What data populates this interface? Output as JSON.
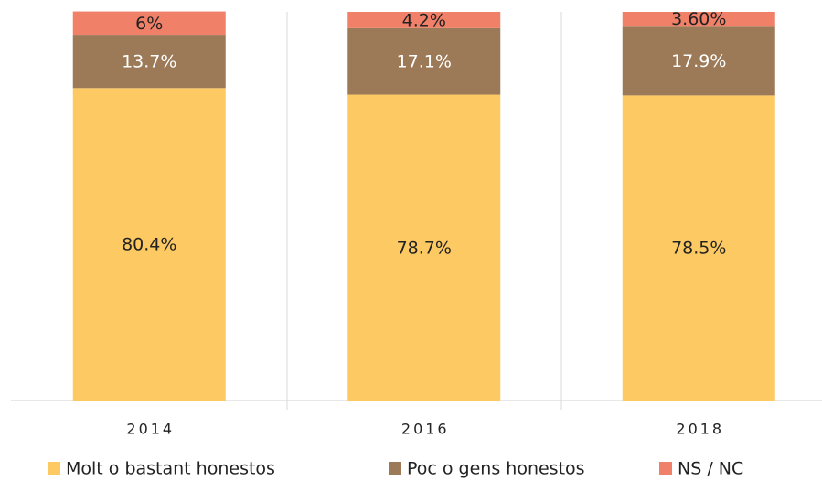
{
  "chart_data": {
    "type": "bar",
    "stacked": true,
    "categories": [
      "2014",
      "2016",
      "2018"
    ],
    "ylim": [
      0,
      100
    ],
    "series": [
      {
        "name": "Molt o bastant honestos",
        "color": "#fdc962",
        "values": [
          80.4,
          78.7,
          78.5
        ],
        "value_labels": [
          "80.4%",
          "78.7%",
          "78.5%"
        ]
      },
      {
        "name": "Poc o gens honestos",
        "color": "#9c7a57",
        "values": [
          13.7,
          17.1,
          17.9
        ],
        "value_labels": [
          "13.7%",
          "17.1%",
          "17.9%"
        ]
      },
      {
        "name": "NS / NC",
        "color": "#f08068",
        "values": [
          6,
          4.2,
          3.6
        ],
        "value_labels": [
          "6%",
          "4.2%",
          "3.60%"
        ]
      }
    ],
    "legend": "bottom"
  }
}
